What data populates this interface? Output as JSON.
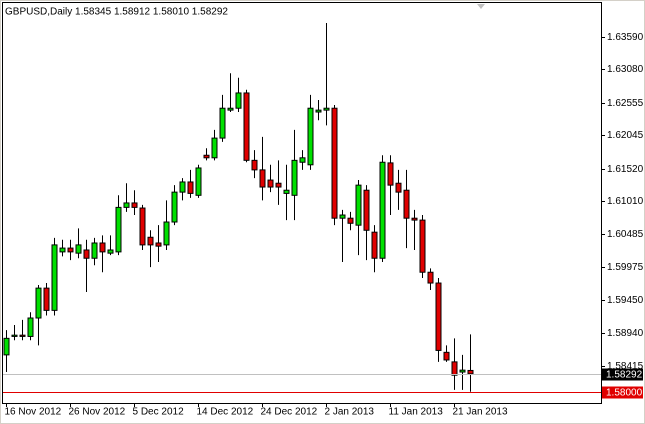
{
  "chart_data": {
    "type": "candlestick",
    "title": "GBPUSD,Daily  1.58345 1.58912 1.58010 1.58292",
    "categories": [
      "16 Nov 2012",
      null,
      null,
      null,
      null,
      null,
      null,
      null,
      "26 Nov 2012",
      null,
      null,
      null,
      null,
      null,
      null,
      null,
      "5 Dec 2012",
      null,
      null,
      null,
      null,
      null,
      null,
      null,
      "14 Dec 2012",
      null,
      null,
      null,
      null,
      null,
      null,
      null,
      "24 Dec 2012",
      null,
      null,
      null,
      null,
      null,
      null,
      null,
      "2 Jan 2013",
      null,
      null,
      null,
      null,
      null,
      null,
      null,
      "11 Jan 2013",
      null,
      null,
      null,
      null,
      null,
      null,
      null,
      "21 Jan 2013",
      null,
      null
    ],
    "open": [
      1.5859,
      1.5888,
      1.589,
      1.5888,
      1.5917,
      1.5964,
      1.5929,
      1.6021,
      1.6027,
      1.6019,
      1.6024,
      1.6011,
      1.6035,
      1.6019,
      1.6021,
      1.6091,
      1.6098,
      1.609,
      1.6044,
      1.6035,
      1.6032,
      1.6068,
      1.6115,
      1.6131,
      1.611,
      1.6173,
      1.6169,
      1.62,
      1.6244,
      1.6247,
      1.6271,
      1.6165,
      1.615,
      1.6134,
      1.6129,
      1.6113,
      1.611,
      1.6162,
      1.6158,
      1.6241,
      1.6244,
      1.6247,
      1.6074,
      1.6074,
      1.6063,
      1.6118,
      1.6052,
      1.6011,
      1.6161,
      1.6129,
      1.6118,
      1.6074,
      1.6071,
      1.5989,
      1.5972,
      1.5863,
      1.5848,
      1.5832,
      1.58345
    ],
    "high": [
      1.5898,
      1.5906,
      1.5914,
      1.5926,
      1.5969,
      1.5972,
      1.6043,
      1.604,
      1.604,
      1.6058,
      1.604,
      1.6043,
      1.6047,
      1.6047,
      1.611,
      1.6129,
      1.6118,
      1.6095,
      1.6055,
      1.6063,
      1.6102,
      1.6126,
      1.6137,
      1.615,
      1.6158,
      1.6184,
      1.6213,
      1.6268,
      1.6302,
      1.6295,
      1.6276,
      1.6181,
      1.6202,
      1.6158,
      1.6165,
      1.6158,
      1.6213,
      1.6181,
      1.6268,
      1.626,
      1.6381,
      1.6252,
      1.6087,
      1.6084,
      1.6134,
      1.6126,
      1.6063,
      1.6173,
      1.6173,
      1.615,
      1.615,
      1.6087,
      1.6079,
      1.5995,
      1.598,
      1.5874,
      1.5885,
      1.5859,
      1.58912
    ],
    "low": [
      1.5832,
      1.5882,
      1.5882,
      1.5882,
      1.5874,
      1.5921,
      1.5921,
      1.6014,
      1.6008,
      1.6011,
      1.5958,
      1.6,
      1.5989,
      1.6016,
      1.6016,
      1.6084,
      1.6079,
      1.6024,
      1.5997,
      1.6005,
      1.6024,
      1.6063,
      1.6102,
      1.6106,
      1.6106,
      1.6165,
      1.6165,
      1.6194,
      1.6241,
      1.6241,
      1.6162,
      1.6137,
      1.6102,
      1.6115,
      1.6095,
      1.6071,
      1.6071,
      1.615,
      1.615,
      1.6228,
      1.622,
      1.6063,
      1.6005,
      1.6055,
      1.6016,
      1.6008,
      1.5989,
      1.6005,
      1.6079,
      1.6087,
      1.6027,
      1.6024,
      1.598,
      1.5961,
      1.5848,
      1.5848,
      1.5804,
      1.5804,
      1.5801
    ],
    "close": [
      1.5885,
      1.589,
      1.5888,
      1.5917,
      1.5964,
      1.5929,
      1.6032,
      1.6027,
      1.6021,
      1.6032,
      1.6011,
      1.6035,
      1.6021,
      1.6024,
      1.6091,
      1.6098,
      1.6091,
      1.6032,
      1.6032,
      1.603,
      1.6068,
      1.6115,
      1.6131,
      1.6113,
      1.6153,
      1.6169,
      1.62,
      1.6247,
      1.6247,
      1.6271,
      1.6165,
      1.615,
      1.6123,
      1.6123,
      1.6123,
      1.6118,
      1.6165,
      1.6169,
      1.6247,
      1.6244,
      1.6247,
      1.6074,
      1.6079,
      1.6066,
      1.6126,
      1.6055,
      1.6011,
      1.6162,
      1.6126,
      1.6115,
      1.6074,
      1.6071,
      1.5989,
      1.5972,
      1.5866,
      1.5851,
      1.5827,
      1.5835,
      1.58292
    ],
    "up_color": "#00e000",
    "down_color": "#e00000",
    "ylim": [
      1.57833,
      1.64125
    ],
    "yticks": [
      {
        "value": 1.6359,
        "label": "1.63590"
      },
      {
        "value": 1.6308,
        "label": "1.63080"
      },
      {
        "value": 1.62555,
        "label": "1.62555"
      },
      {
        "value": 1.62045,
        "label": "1.62045"
      },
      {
        "value": 1.6152,
        "label": "1.61520"
      },
      {
        "value": 1.6101,
        "label": "1.61010"
      },
      {
        "value": 1.60485,
        "label": "1.60485"
      },
      {
        "value": 1.59975,
        "label": "1.59975"
      },
      {
        "value": 1.5945,
        "label": "1.59450"
      },
      {
        "value": 1.5894,
        "label": "1.58940"
      },
      {
        "value": 1.58415,
        "label": "1.58415"
      }
    ],
    "hlines": [
      {
        "value": 1.58292,
        "label": "1.58292",
        "color": "#c0c0c0"
      },
      {
        "value": 1.58,
        "label": "1.58000",
        "color": "#e00000"
      }
    ]
  }
}
